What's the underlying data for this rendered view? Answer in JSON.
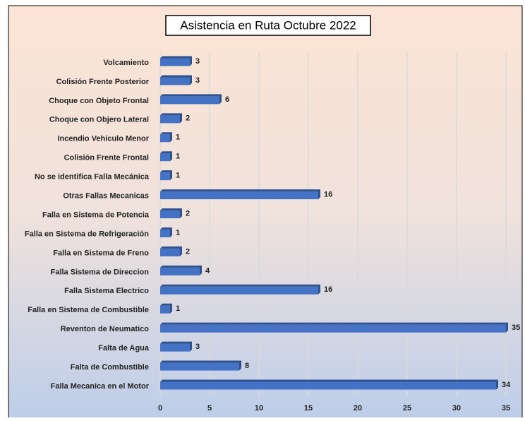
{
  "chart_data": {
    "type": "bar",
    "orientation": "horizontal",
    "title": "Asistencia en Ruta Octubre 2022",
    "categories": [
      "Volcamiento",
      "Colisión Frente Posterior",
      "Choque con Objeto Frontal",
      "Choque con Objero Lateral",
      "Incendio Vehiculo Menor",
      "Colisión Frente Frontal",
      "No se identifica Falla Mecánica",
      "Otras Fallas Mecanicas",
      "Falla en Sistema de Potencia",
      "Falla en Sistema de Refrigeración",
      "Falla en Sistema de Freno",
      "Falla Sistema de Direccion",
      "Falla Sistema Electrico",
      "Falla en Sistema de Combustible",
      "Reventon de Neumatico",
      "Falta de Agua",
      "Falta de Combustible",
      "Falla Mecanica en el Motor"
    ],
    "values": [
      3,
      3,
      6,
      2,
      1,
      1,
      1,
      16,
      2,
      1,
      2,
      4,
      16,
      1,
      35,
      3,
      8,
      34
    ],
    "color": "#4472c4",
    "xlim": [
      0,
      35
    ],
    "xticks": [
      0,
      5,
      10,
      15,
      20,
      25,
      30,
      35
    ],
    "grid": true
  }
}
